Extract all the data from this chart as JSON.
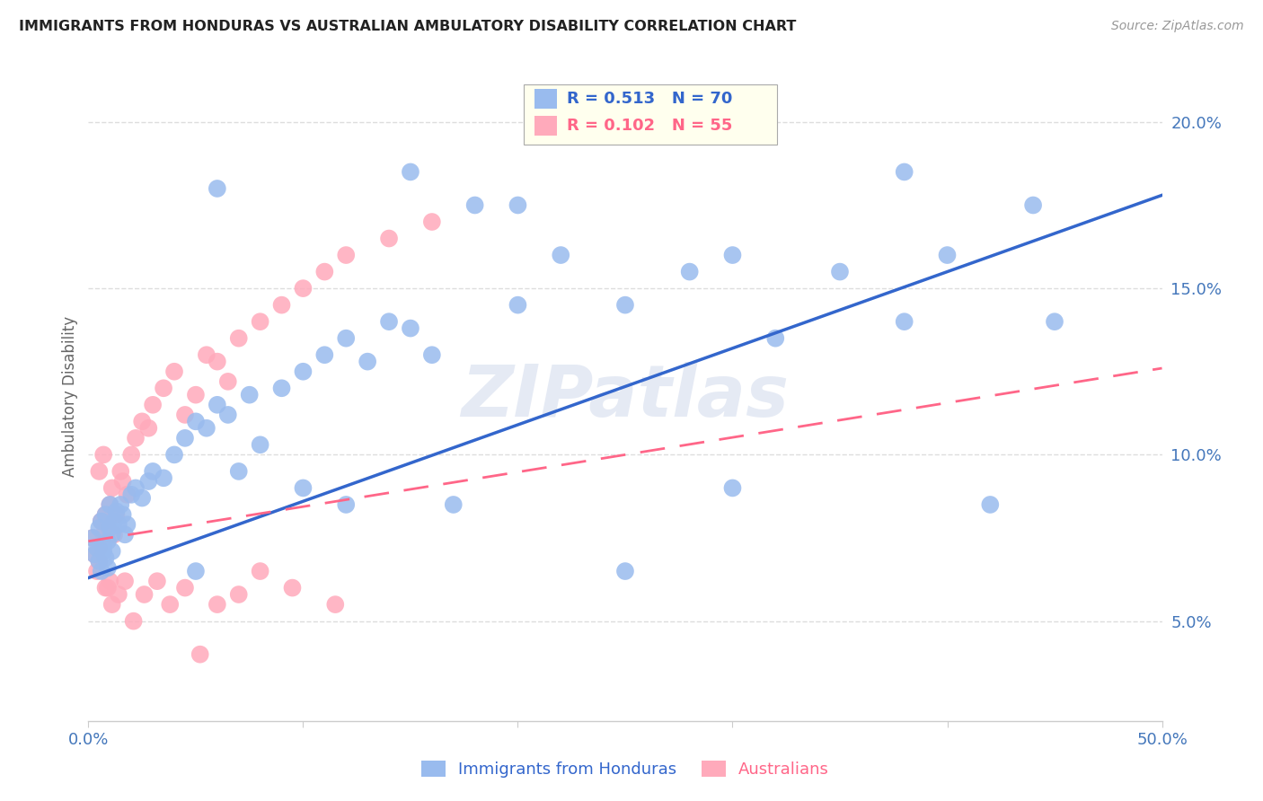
{
  "title": "IMMIGRANTS FROM HONDURAS VS AUSTRALIAN AMBULATORY DISABILITY CORRELATION CHART",
  "source": "Source: ZipAtlas.com",
  "ylabel": "Ambulatory Disability",
  "watermark": "ZIPatlas",
  "x_min": 0.0,
  "x_max": 0.5,
  "y_min": 0.02,
  "y_max": 0.215,
  "y_ticks": [
    0.05,
    0.1,
    0.15,
    0.2
  ],
  "y_tick_labels": [
    "5.0%",
    "10.0%",
    "15.0%",
    "20.0%"
  ],
  "legend_blue_r": "R = 0.513",
  "legend_blue_n": "N = 70",
  "legend_pink_r": "R = 0.102",
  "legend_pink_n": "N = 55",
  "legend_label_blue": "Immigrants from Honduras",
  "legend_label_pink": "Australians",
  "blue_color": "#99BBEE",
  "pink_color": "#FFAABB",
  "line_blue_color": "#3366CC",
  "line_pink_color": "#FF6688",
  "blue_trend_x": [
    0.0,
    0.5
  ],
  "blue_trend_y": [
    0.063,
    0.178
  ],
  "pink_trend_x": [
    0.0,
    0.5
  ],
  "pink_trend_y": [
    0.074,
    0.126
  ],
  "background_color": "#ffffff",
  "grid_color": "#dddddd",
  "title_color": "#222222",
  "tick_label_color": "#4477BB",
  "ylabel_color": "#666666",
  "source_color": "#999999",
  "legend_box_color": "#FFFFEE",
  "blue_x": [
    0.002,
    0.003,
    0.004,
    0.005,
    0.005,
    0.006,
    0.006,
    0.007,
    0.007,
    0.008,
    0.008,
    0.009,
    0.009,
    0.01,
    0.01,
    0.011,
    0.011,
    0.012,
    0.013,
    0.014,
    0.015,
    0.016,
    0.017,
    0.018,
    0.02,
    0.022,
    0.025,
    0.028,
    0.03,
    0.035,
    0.04,
    0.045,
    0.05,
    0.055,
    0.06,
    0.065,
    0.07,
    0.075,
    0.08,
    0.09,
    0.1,
    0.11,
    0.12,
    0.13,
    0.14,
    0.15,
    0.16,
    0.17,
    0.18,
    0.2,
    0.22,
    0.25,
    0.28,
    0.3,
    0.32,
    0.35,
    0.38,
    0.4,
    0.42,
    0.45,
    0.05,
    0.1,
    0.15,
    0.2,
    0.25,
    0.3,
    0.38,
    0.44,
    0.06,
    0.12
  ],
  "blue_y": [
    0.075,
    0.07,
    0.072,
    0.068,
    0.078,
    0.065,
    0.08,
    0.071,
    0.073,
    0.069,
    0.082,
    0.066,
    0.074,
    0.078,
    0.085,
    0.071,
    0.076,
    0.08,
    0.083,
    0.079,
    0.085,
    0.082,
    0.076,
    0.079,
    0.088,
    0.09,
    0.087,
    0.092,
    0.095,
    0.093,
    0.1,
    0.105,
    0.11,
    0.108,
    0.115,
    0.112,
    0.095,
    0.118,
    0.103,
    0.12,
    0.125,
    0.13,
    0.135,
    0.128,
    0.14,
    0.138,
    0.13,
    0.085,
    0.175,
    0.145,
    0.16,
    0.145,
    0.155,
    0.16,
    0.135,
    0.155,
    0.14,
    0.16,
    0.085,
    0.14,
    0.065,
    0.09,
    0.185,
    0.175,
    0.065,
    0.09,
    0.185,
    0.175,
    0.18,
    0.085
  ],
  "pink_x": [
    0.002,
    0.003,
    0.004,
    0.005,
    0.005,
    0.006,
    0.007,
    0.008,
    0.008,
    0.009,
    0.01,
    0.01,
    0.011,
    0.012,
    0.013,
    0.015,
    0.016,
    0.018,
    0.02,
    0.022,
    0.025,
    0.028,
    0.03,
    0.035,
    0.04,
    0.045,
    0.05,
    0.055,
    0.06,
    0.065,
    0.07,
    0.08,
    0.09,
    0.1,
    0.11,
    0.12,
    0.14,
    0.16,
    0.005,
    0.007,
    0.009,
    0.011,
    0.014,
    0.017,
    0.021,
    0.026,
    0.032,
    0.038,
    0.045,
    0.052,
    0.06,
    0.07,
    0.08,
    0.095,
    0.115
  ],
  "pink_y": [
    0.075,
    0.07,
    0.065,
    0.068,
    0.072,
    0.08,
    0.076,
    0.082,
    0.06,
    0.078,
    0.085,
    0.062,
    0.09,
    0.076,
    0.082,
    0.095,
    0.092,
    0.088,
    0.1,
    0.105,
    0.11,
    0.108,
    0.115,
    0.12,
    0.125,
    0.112,
    0.118,
    0.13,
    0.128,
    0.122,
    0.135,
    0.14,
    0.145,
    0.15,
    0.155,
    0.16,
    0.165,
    0.17,
    0.095,
    0.1,
    0.06,
    0.055,
    0.058,
    0.062,
    0.05,
    0.058,
    0.062,
    0.055,
    0.06,
    0.04,
    0.055,
    0.058,
    0.065,
    0.06,
    0.055
  ]
}
